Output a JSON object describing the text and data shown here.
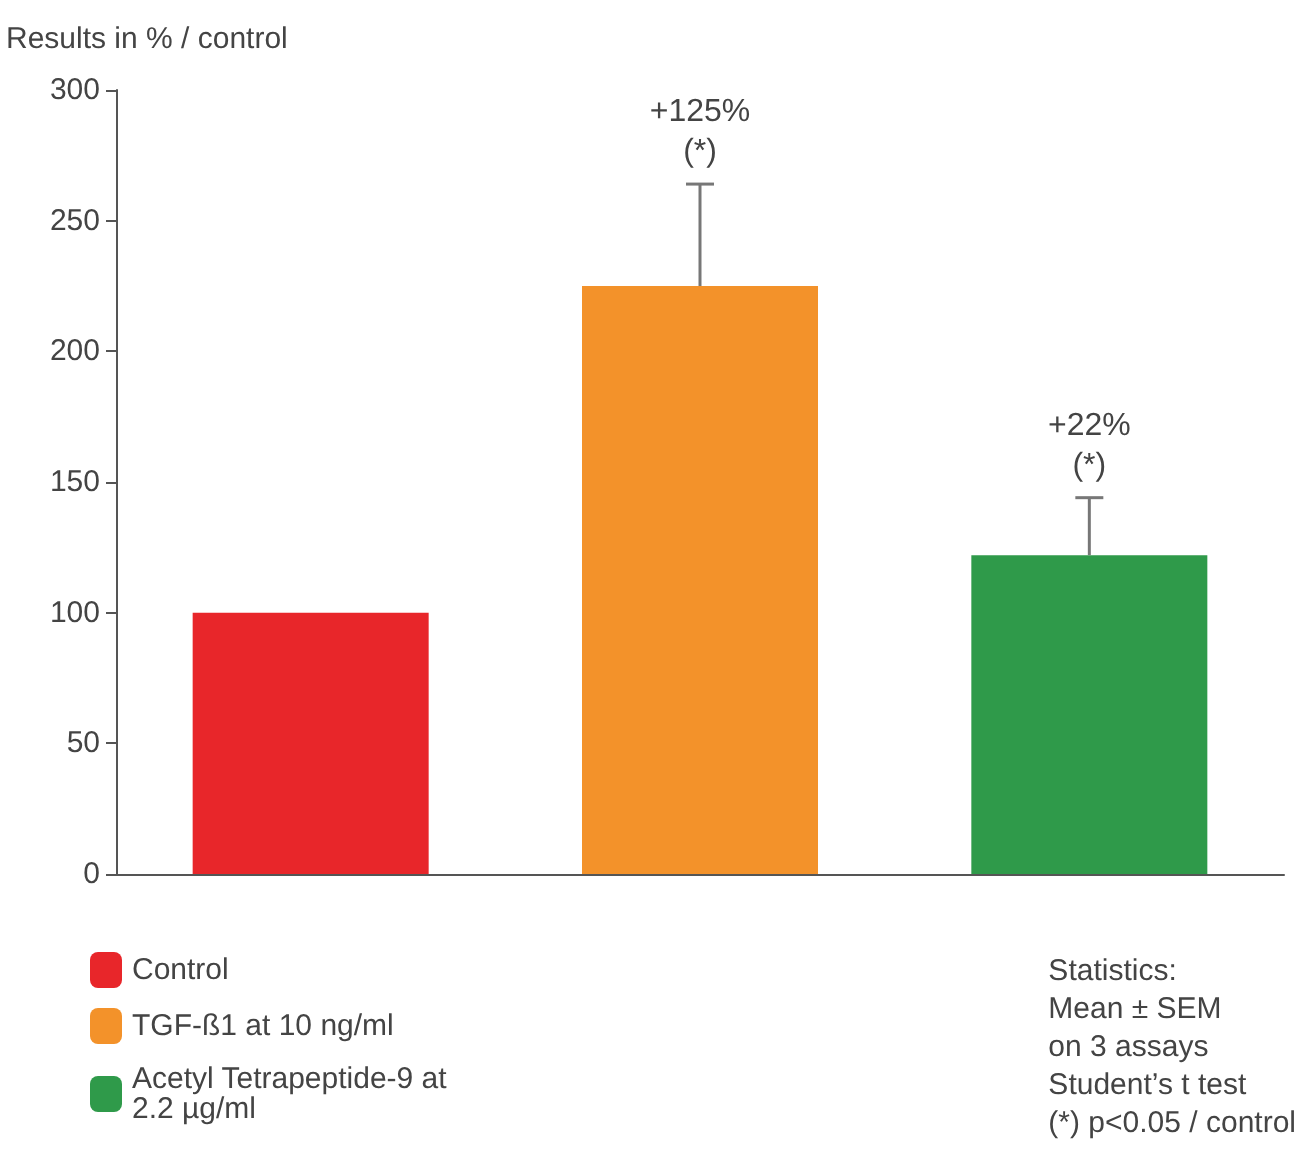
{
  "chart_data": {
    "type": "bar",
    "ylabel": "Results in % / control",
    "categories": [
      null,
      null,
      null
    ],
    "series": [
      {
        "name": "Control",
        "color": "#e8262a",
        "values": [
          100,
          null,
          null
        ],
        "errors": [
          null,
          null,
          null
        ]
      },
      {
        "name": "TGF-ß1 at 10 ng/ml",
        "color": "#f3922a",
        "values": [
          null,
          225,
          null
        ],
        "errors": [
          null,
          [
            225,
            264
          ],
          null
        ]
      },
      {
        "name": "Acetyl Tetrapeptide-9 at 2.2 µg/ml",
        "color": "#2f9a4a",
        "values": [
          null,
          null,
          122
        ],
        "errors": [
          null,
          null,
          [
            122,
            144
          ]
        ]
      }
    ],
    "ylim": [
      0,
      300
    ],
    "yticks": [
      0,
      50,
      100,
      150,
      200,
      250,
      300
    ],
    "grid": false,
    "legend": "bottom left",
    "annotations": [
      {
        "text": "+125%\n(*)",
        "y": 264
      },
      {
        "text": "+22%\n(*)",
        "y": 144
      },
      "Statistics:\nMean ± SEM\non 3 assays\nStudent’s t test\n(*) p<0.05 / control"
    ]
  }
}
